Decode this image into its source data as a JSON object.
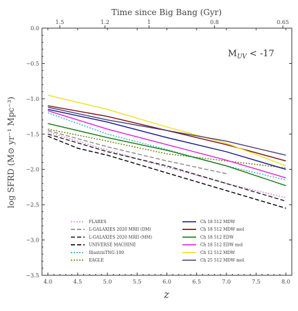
{
  "chart_data": {
    "type": "line",
    "xlabel": "z",
    "ylabel": "log SFRD (M⊙ yr⁻¹ Mpc⁻³)",
    "top_axis_label": "Time since Big Bang (Gyr)",
    "top_ticks": [
      {
        "z": 4.2,
        "label": "1.5"
      },
      {
        "z": 4.96,
        "label": "1.2"
      },
      {
        "z": 5.7,
        "label": "1"
      },
      {
        "z": 6.8,
        "label": "0.8"
      },
      {
        "z": 7.95,
        "label": "0.65"
      }
    ],
    "annotation": "M",
    "annotation_sub": "UV",
    "annotation_tail": " < -17",
    "xlim": [
      3.9,
      8.1
    ],
    "ylim": [
      -3.5,
      0.0
    ],
    "xticks": [
      4.0,
      4.5,
      5.0,
      5.5,
      6.0,
      6.5,
      7.0,
      7.5,
      8.0
    ],
    "xtick_labels": [
      "4.0",
      "4.5",
      "5.0",
      "5.5",
      "6.0",
      "6.5",
      "7.0",
      "7.5",
      "8.0"
    ],
    "yticks": [
      0.0,
      -0.5,
      -1.0,
      -1.5,
      -2.0,
      -2.5,
      -3.0,
      -3.5
    ],
    "ytick_labels": [
      "0.0",
      "−0.5",
      "−1.0",
      "−1.5",
      "−2.0",
      "−2.5",
      "−3.0",
      "−3.5"
    ],
    "legend_placement": "bottom",
    "series": [
      {
        "name": "FLARES",
        "color": "#d48ad8",
        "dash": "dot",
        "x": [
          4.0,
          5.0,
          6.0,
          7.0,
          8.0
        ],
        "y": [
          -1.47,
          -1.73,
          -1.97,
          -2.2,
          -2.4
        ]
      },
      {
        "name": "L-GALAXIES 2020 MRII (DM)",
        "color": "#888888",
        "dash": "dash",
        "x": [
          4.0,
          5.0,
          6.0,
          7.0
        ],
        "y": [
          -1.45,
          -1.68,
          -1.88,
          -2.06
        ]
      },
      {
        "name": "L-GALAXIES 2020 MRII (MM)",
        "color": "#222222",
        "dash": "dash",
        "x": [
          4.0,
          5.0,
          6.0,
          7.0,
          8.0
        ],
        "y": [
          -1.5,
          -1.75,
          -1.95,
          -2.2,
          -2.45
        ]
      },
      {
        "name": "UNIVERSE MACHINE",
        "color": "#000000",
        "dash": "dash",
        "x": [
          4.0,
          4.5,
          5.0,
          6.0,
          7.0,
          8.0
        ],
        "y": [
          -1.53,
          -1.7,
          -1.8,
          -2.05,
          -2.3,
          -2.55
        ]
      },
      {
        "name": "IllustrisTNG-100",
        "color": "#2ab4cc",
        "dash": "dot",
        "x": [
          4.0,
          4.5,
          5.0,
          6.0,
          7.0,
          8.0
        ],
        "y": [
          -1.2,
          -1.35,
          -1.5,
          -1.72,
          -1.95,
          -2.15
        ]
      },
      {
        "name": "EAGLE",
        "color": "#6b7d00",
        "dash": "dot",
        "x": [
          4.0,
          5.0,
          6.0,
          7.0,
          8.0
        ],
        "y": [
          -1.43,
          -1.6,
          -1.78,
          -1.88,
          -1.98
        ]
      },
      {
        "name": "Ch 18 512 MDW",
        "color": "#14148a",
        "dash": "solid",
        "x": [
          4.0,
          5.0,
          6.0,
          7.0,
          8.0
        ],
        "y": [
          -1.15,
          -1.33,
          -1.55,
          -1.75,
          -2.0
        ]
      },
      {
        "name": "Ch 18 512 MDW mol",
        "color": "#7a1010",
        "dash": "solid",
        "x": [
          4.0,
          5.0,
          6.0,
          7.0,
          8.0
        ],
        "y": [
          -1.1,
          -1.25,
          -1.45,
          -1.65,
          -1.88
        ]
      },
      {
        "name": "Ch 18 512 EDW",
        "color": "#147814",
        "dash": "solid",
        "x": [
          4.0,
          5.0,
          6.0,
          7.0,
          8.0
        ],
        "y": [
          -1.35,
          -1.55,
          -1.73,
          -1.95,
          -2.23
        ]
      },
      {
        "name": "Ch 18 512 EDW mol",
        "color": "#e020e0",
        "dash": "solid",
        "x": [
          4.0,
          5.0,
          6.0,
          7.0,
          8.0
        ],
        "y": [
          -1.17,
          -1.43,
          -1.65,
          -1.87,
          -2.12
        ]
      },
      {
        "name": "Ch 12 512 MDW",
        "color": "#f0e020",
        "dash": "solid",
        "x": [
          4.0,
          5.0,
          6.0,
          7.0,
          8.0
        ],
        "y": [
          -0.95,
          -1.15,
          -1.4,
          -1.63,
          -1.95
        ]
      },
      {
        "name": "Ch 25 512 MDW mol",
        "color": "#4a3a78",
        "dash": "solid",
        "x": [
          4.0,
          5.0,
          6.0,
          7.0,
          8.0
        ],
        "y": [
          -1.12,
          -1.3,
          -1.45,
          -1.6,
          -1.8
        ]
      }
    ]
  }
}
